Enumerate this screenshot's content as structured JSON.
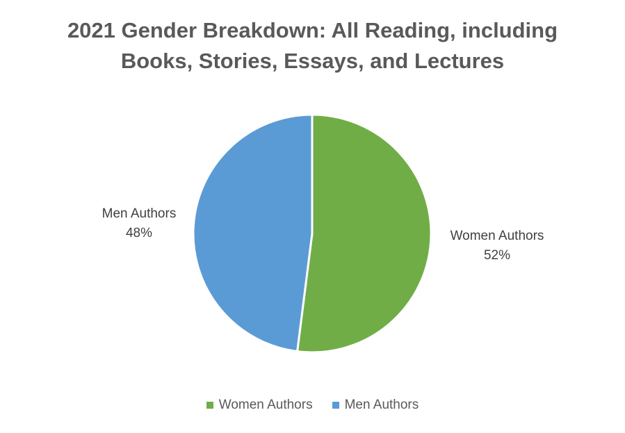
{
  "chart_data": {
    "type": "pie",
    "title_lines": [
      "2021 Gender Breakdown: All Reading, including",
      "Books, Stories, Essays, and Lectures"
    ],
    "slices": [
      {
        "name": "Women Authors",
        "value": 52,
        "value_label": "52%",
        "color": "#70AD47"
      },
      {
        "name": "Men Authors",
        "value": 48,
        "value_label": "48%",
        "color": "#5B9BD5"
      }
    ],
    "start_angle": "12 o'clock",
    "direction": "clockwise",
    "legend": {
      "position": "bottom"
    }
  }
}
